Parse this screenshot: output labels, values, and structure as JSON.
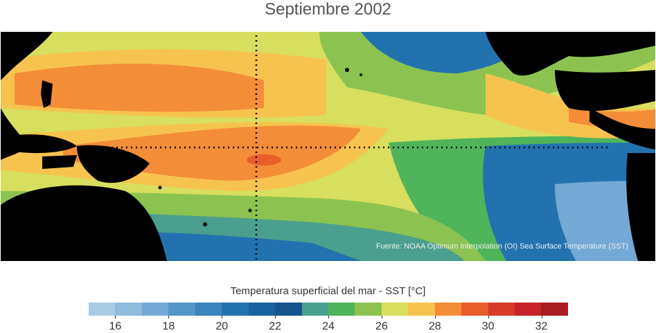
{
  "title": "Septiembre 2002",
  "source": "Fuente: NOAA Optimum Interpolation (OI) Sea Surface Temperature (SST)",
  "colorbar": {
    "title": "Temperatura superficial del mar - SST  [°C]",
    "min": 15,
    "max": 33,
    "colors": [
      "#a9cbe4",
      "#8fbbdd",
      "#73a9d4",
      "#5596c8",
      "#3a84bd",
      "#2272b0",
      "#1a61a0",
      "#16548e",
      "#4a9f8e",
      "#4fb45a",
      "#8cc350",
      "#d8de5e",
      "#f7c34f",
      "#f38d38",
      "#e85d29",
      "#d73b27",
      "#c9222a",
      "#a91c22"
    ],
    "ticks": [
      "16",
      "18",
      "20",
      "22",
      "24",
      "26",
      "28",
      "30",
      "32"
    ],
    "tick_values": [
      16,
      18,
      20,
      22,
      24,
      26,
      28,
      30,
      32
    ]
  }
}
